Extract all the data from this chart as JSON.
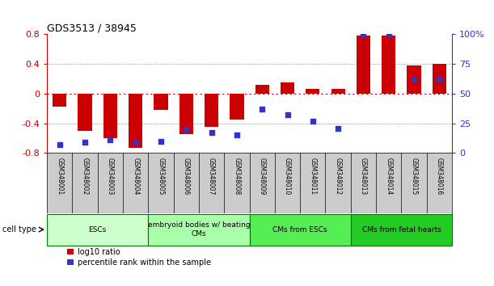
{
  "title": "GDS3513 / 38945",
  "samples": [
    "GSM348001",
    "GSM348002",
    "GSM348003",
    "GSM348004",
    "GSM348005",
    "GSM348006",
    "GSM348007",
    "GSM348008",
    "GSM348009",
    "GSM348010",
    "GSM348011",
    "GSM348012",
    "GSM348013",
    "GSM348014",
    "GSM348015",
    "GSM348016"
  ],
  "log10_ratio": [
    -0.18,
    -0.5,
    -0.6,
    -0.73,
    -0.22,
    -0.55,
    -0.45,
    -0.35,
    0.12,
    0.15,
    0.07,
    0.07,
    0.78,
    0.78,
    0.38,
    0.4
  ],
  "percentile_rank": [
    7,
    9,
    11,
    9,
    10,
    20,
    17,
    15,
    37,
    32,
    27,
    21,
    100,
    100,
    62,
    62
  ],
  "bar_color": "#cc0000",
  "dot_color": "#3333cc",
  "ylim_left": [
    -0.8,
    0.8
  ],
  "yticks_left": [
    -0.8,
    -0.4,
    0.0,
    0.4,
    0.8
  ],
  "ytick_labels_left": [
    "-0.8",
    "-0.4",
    "0",
    "0.4",
    "0.8"
  ],
  "right_ytick_pct": [
    0,
    25,
    50,
    75,
    100
  ],
  "right_ytick_labels": [
    "0",
    "25",
    "50",
    "75",
    "100%"
  ],
  "hlines": [
    -0.4,
    0.0,
    0.4
  ],
  "cell_types": [
    {
      "label": "ESCs",
      "start": 0,
      "end": 3,
      "color": "#ccffcc"
    },
    {
      "label": "embryoid bodies w/ beating\nCMs",
      "start": 4,
      "end": 7,
      "color": "#aaffaa"
    },
    {
      "label": "CMs from ESCs",
      "start": 8,
      "end": 11,
      "color": "#55ee55"
    },
    {
      "label": "CMs from fetal hearts",
      "start": 12,
      "end": 15,
      "color": "#22cc22"
    }
  ],
  "bg_color": "#ffffff",
  "sample_bg": "#cccccc",
  "zero_line_color": "#cc0000",
  "bar_width": 0.55
}
